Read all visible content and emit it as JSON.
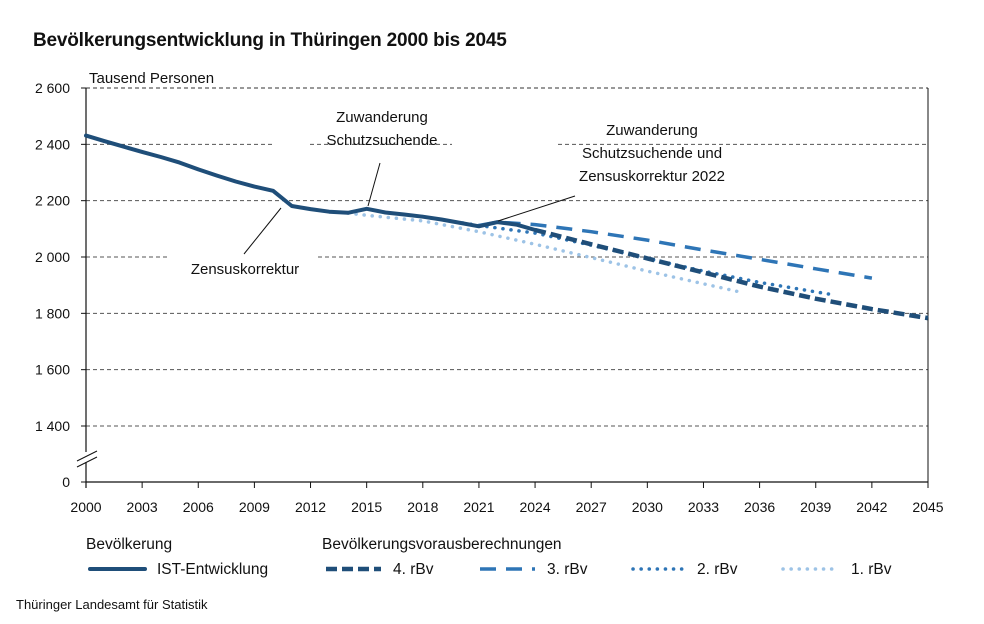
{
  "chart_data": {
    "type": "line",
    "title": "Bevölkerungsentwicklung in Thüringen 2000 bis 2045",
    "ylabel": "Tausend Personen",
    "xlabel": "",
    "xlim": [
      2000,
      2045
    ],
    "ylim": [
      0,
      2600
    ],
    "y_axis_break": true,
    "y_break_range": [
      0,
      1300
    ],
    "y_ticks": [
      0,
      1400,
      1600,
      1800,
      2000,
      2200,
      2400,
      2600
    ],
    "y_tick_labels": [
      "0",
      "1 400",
      "1 600",
      "1 800",
      "2 000",
      "2 200",
      "2 400",
      "2 600"
    ],
    "x_ticks": [
      2000,
      2003,
      2006,
      2009,
      2012,
      2015,
      2018,
      2021,
      2024,
      2027,
      2030,
      2033,
      2036,
      2039,
      2042,
      2045
    ],
    "x_tick_labels": [
      "2000",
      "2003",
      "2006",
      "2009",
      "2012",
      "2015",
      "2018",
      "2021",
      "2024",
      "2027",
      "2030",
      "2033",
      "2036",
      "2039",
      "2042",
      "2045"
    ],
    "grid": "horizontal dashed",
    "legend_position": "bottom",
    "legend_groups": [
      {
        "title": "Bevölkerung",
        "entries": [
          "IST-Entwicklung"
        ]
      },
      {
        "title": "Bevölkerungsvorausberechnungen",
        "entries": [
          "4. rBv",
          "3. rBv",
          "2. rBv",
          "1. rBv"
        ]
      }
    ],
    "series": [
      {
        "name": "IST-Entwicklung",
        "style": "solid",
        "color": "#1f4e79",
        "x": [
          2000,
          2001,
          2002,
          2003,
          2004,
          2005,
          2006,
          2007,
          2008,
          2009,
          2010,
          2011,
          2012,
          2013,
          2014,
          2015,
          2016,
          2017,
          2018,
          2019,
          2020,
          2021,
          2022,
          2023,
          2024
        ],
        "values": [
          2431,
          2411,
          2392,
          2373,
          2355,
          2335,
          2311,
          2289,
          2268,
          2250,
          2235,
          2181,
          2170,
          2161,
          2157,
          2171,
          2158,
          2151,
          2143,
          2133,
          2121,
          2109,
          2124,
          2115,
          2096
        ]
      },
      {
        "name": "4. rBv",
        "style": "dash-thick",
        "color": "#1f4e79",
        "x": [
          2024,
          2027,
          2030,
          2033,
          2036,
          2039,
          2042,
          2045
        ],
        "values": [
          2096,
          2045,
          1995,
          1945,
          1895,
          1852,
          1815,
          1783
        ]
      },
      {
        "name": "3. rBv",
        "style": "long-dash",
        "color": "#2e75b6",
        "x": [
          2021,
          2022,
          2024,
          2027,
          2030,
          2033,
          2036,
          2039,
          2042
        ],
        "values": [
          2112,
          2124,
          2115,
          2090,
          2060,
          2025,
          1992,
          1958,
          1925
        ]
      },
      {
        "name": "2. rBv",
        "style": "dotted",
        "color": "#2e75b6",
        "x": [
          2018,
          2021,
          2024,
          2027,
          2030,
          2033,
          2036,
          2040
        ],
        "values": [
          2143,
          2112,
          2085,
          2042,
          1995,
          1950,
          1910,
          1865
        ]
      },
      {
        "name": "1. rBv",
        "style": "dotted-light",
        "color": "#9dc3e6",
        "x": [
          2014,
          2015,
          2018,
          2021,
          2024,
          2027,
          2030,
          2033,
          2035
        ],
        "values": [
          2156,
          2148,
          2128,
          2090,
          2045,
          1998,
          1950,
          1905,
          1875
        ]
      }
    ],
    "annotations": [
      {
        "text": [
          "Zensuskorrektur"
        ],
        "points_to_year": 2011
      },
      {
        "text": [
          "Zuwanderung",
          "Schutzsuchende"
        ],
        "points_to_year": 2015
      },
      {
        "text": [
          "Zuwanderung",
          "Schutzsuchende und",
          "Zensuskorrektur 2022"
        ],
        "points_to_year": 2022
      }
    ]
  },
  "source": "Thüringer Landesamt für Statistik"
}
